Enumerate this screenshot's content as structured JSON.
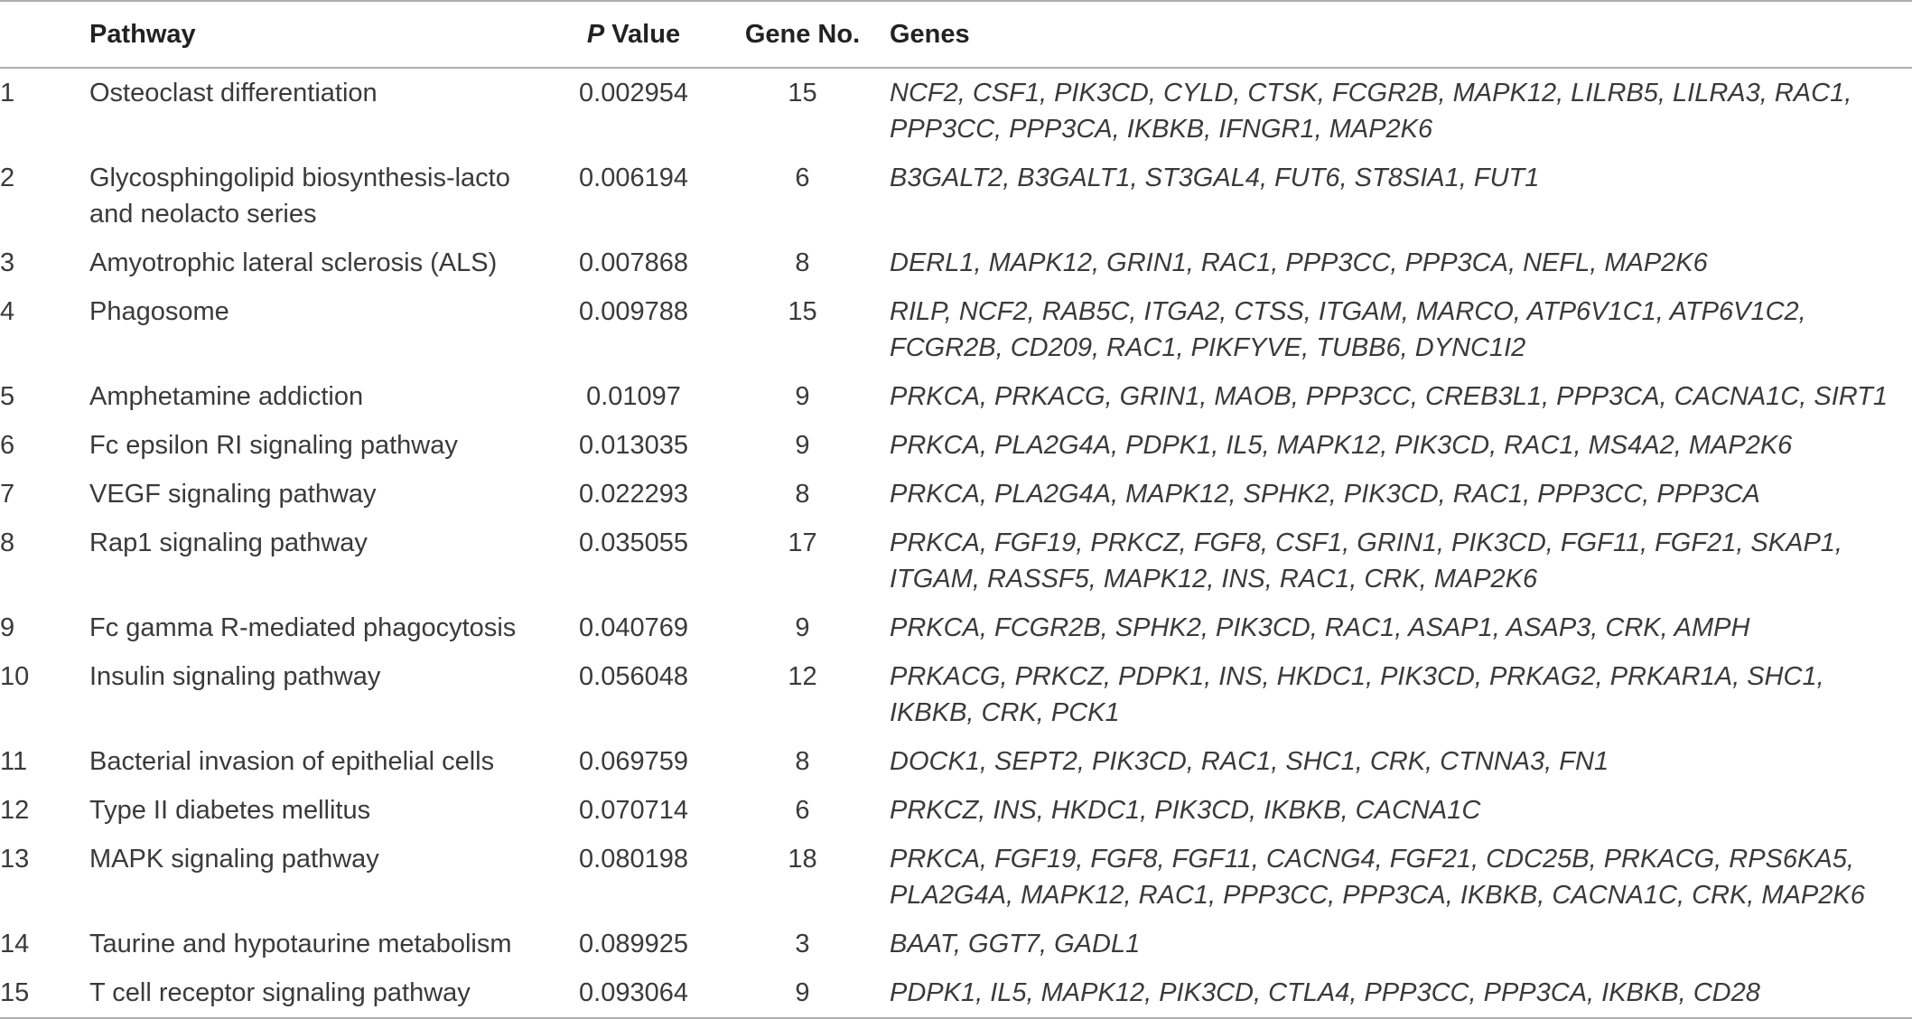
{
  "header": {
    "index": "",
    "pathway": "Pathway",
    "pvalue_italic": "P",
    "pvalue_rest": " Value",
    "gene_no": "Gene No.",
    "genes": "Genes"
  },
  "rows": [
    {
      "index": "1",
      "pathway": "Osteoclast differentiation",
      "pvalue": "0.002954",
      "gene_no": "15",
      "genes": "NCF2, CSF1, PIK3CD, CYLD, CTSK, FCGR2B, MAPK12, LILRB5, LILRA3, RAC1, PPP3CC, PPP3CA, IKBKB, IFNGR1, MAP2K6"
    },
    {
      "index": "2",
      "pathway": "Glycosphingolipid biosynthesis-lacto and neolacto series",
      "pvalue": "0.006194",
      "gene_no": "6",
      "genes": "B3GALT2, B3GALT1, ST3GAL4, FUT6, ST8SIA1, FUT1"
    },
    {
      "index": "3",
      "pathway": "Amyotrophic lateral sclerosis (ALS)",
      "pvalue": "0.007868",
      "gene_no": "8",
      "genes": "DERL1, MAPK12, GRIN1, RAC1, PPP3CC, PPP3CA, NEFL, MAP2K6"
    },
    {
      "index": "4",
      "pathway": "Phagosome",
      "pvalue": "0.009788",
      "gene_no": "15",
      "genes": "RILP, NCF2, RAB5C, ITGA2, CTSS, ITGAM, MARCO, ATP6V1C1, ATP6V1C2, FCGR2B, CD209, RAC1, PIKFYVE, TUBB6, DYNC1I2"
    },
    {
      "index": "5",
      "pathway": "Amphetamine addiction",
      "pvalue": "0.01097",
      "gene_no": "9",
      "genes": "PRKCA, PRKACG, GRIN1, MAOB, PPP3CC, CREB3L1, PPP3CA, CACNA1C, SIRT1"
    },
    {
      "index": "6",
      "pathway": "Fc epsilon RI signaling pathway",
      "pvalue": "0.013035",
      "gene_no": "9",
      "genes": "PRKCA, PLA2G4A, PDPK1, IL5, MAPK12, PIK3CD, RAC1, MS4A2, MAP2K6"
    },
    {
      "index": "7",
      "pathway": "VEGF signaling pathway",
      "pvalue": "0.022293",
      "gene_no": "8",
      "genes": "PRKCA, PLA2G4A, MAPK12, SPHK2, PIK3CD, RAC1, PPP3CC, PPP3CA"
    },
    {
      "index": "8",
      "pathway": "Rap1 signaling pathway",
      "pvalue": "0.035055",
      "gene_no": "17",
      "genes": "PRKCA, FGF19, PRKCZ, FGF8, CSF1, GRIN1, PIK3CD, FGF11, FGF21, SKAP1, ITGAM, RASSF5, MAPK12, INS, RAC1, CRK, MAP2K6"
    },
    {
      "index": "9",
      "pathway": "Fc gamma R-mediated phagocytosis",
      "pvalue": "0.040769",
      "gene_no": "9",
      "genes": "PRKCA, FCGR2B, SPHK2, PIK3CD, RAC1, ASAP1, ASAP3, CRK, AMPH"
    },
    {
      "index": "10",
      "pathway": "Insulin signaling pathway",
      "pvalue": "0.056048",
      "gene_no": "12",
      "genes": "PRKACG, PRKCZ, PDPK1, INS, HKDC1, PIK3CD, PRKAG2, PRKAR1A, SHC1, IKBKB, CRK, PCK1"
    },
    {
      "index": "11",
      "pathway": "Bacterial invasion of epithelial cells",
      "pvalue": "0.069759",
      "gene_no": "8",
      "genes": "DOCK1, SEPT2, PIK3CD, RAC1, SHC1, CRK, CTNNA3, FN1"
    },
    {
      "index": "12",
      "pathway": "Type II diabetes mellitus",
      "pvalue": "0.070714",
      "gene_no": "6",
      "genes": "PRKCZ, INS, HKDC1, PIK3CD, IKBKB, CACNA1C"
    },
    {
      "index": "13",
      "pathway": "MAPK signaling pathway",
      "pvalue": "0.080198",
      "gene_no": "18",
      "genes": "PRKCA, FGF19, FGF8, FGF11, CACNG4, FGF21, CDC25B, PRKACG, RPS6KA5, PLA2G4A, MAPK12, RAC1, PPP3CC, PPP3CA, IKBKB, CACNA1C, CRK, MAP2K6"
    },
    {
      "index": "14",
      "pathway": "Taurine and hypotaurine metabolism",
      "pvalue": "0.089925",
      "gene_no": "3",
      "genes": "BAAT, GGT7, GADL1"
    },
    {
      "index": "15",
      "pathway": "T cell receptor signaling pathway",
      "pvalue": "0.093064",
      "gene_no": "9",
      "genes": "PDPK1, IL5, MAPK12, PIK3CD, CTLA4, PPP3CC, PPP3CA, IKBKB, CD28"
    }
  ]
}
